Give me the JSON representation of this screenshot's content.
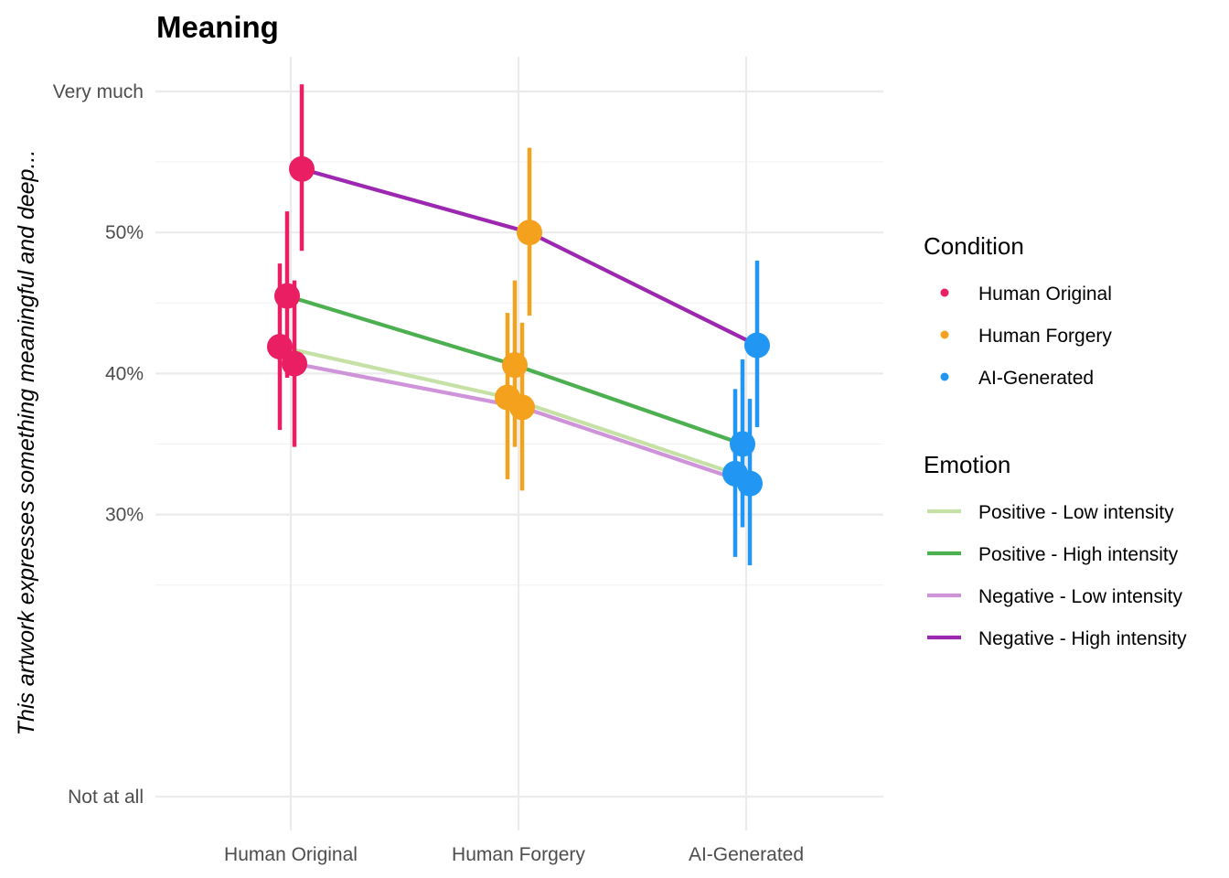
{
  "chart_data": {
    "type": "line",
    "title": "Meaning",
    "xlabel": "",
    "ylabel": "This artwork expresses something meaningful and deep...",
    "categories": [
      "Human Original",
      "Human Forgery",
      "AI-Generated"
    ],
    "y_ticks": [
      {
        "value": 0.1,
        "label": "Not at all"
      },
      {
        "value": 0.3,
        "label": "30%"
      },
      {
        "value": 0.4,
        "label": "40%"
      },
      {
        "value": 0.5,
        "label": "50%"
      },
      {
        "value": 0.6,
        "label": "Very much"
      }
    ],
    "y_minor_ticks": [
      0.25,
      0.35,
      0.45,
      0.55
    ],
    "ylim": [
      0.085,
      0.62
    ],
    "grid": true,
    "legend_position": "right",
    "condition_legend": {
      "title": "Condition",
      "items": [
        {
          "name": "Human Original",
          "color": "#E91E63"
        },
        {
          "name": "Human Forgery",
          "color": "#F4A11D"
        },
        {
          "name": "AI-Generated",
          "color": "#2196F3"
        }
      ]
    },
    "emotion_legend": {
      "title": "Emotion",
      "items": [
        {
          "name": "Positive - Low intensity",
          "color": "#C5E1A5"
        },
        {
          "name": "Positive - High intensity",
          "color": "#4CAF50"
        },
        {
          "name": "Negative - Low intensity",
          "color": "#CE93D8"
        },
        {
          "name": "Negative - High intensity",
          "color": "#9C27B0"
        }
      ]
    },
    "series": [
      {
        "name": "Positive - Low intensity",
        "color": "#C5E1A5",
        "dodge": -0.3,
        "values": [
          0.419,
          0.383,
          0.329
        ],
        "lower": [
          0.36,
          0.325,
          0.27
        ],
        "upper": [
          0.478,
          0.443,
          0.389
        ]
      },
      {
        "name": "Positive - High intensity",
        "color": "#4CAF50",
        "dodge": -0.1,
        "values": [
          0.455,
          0.406,
          0.35
        ],
        "lower": [
          0.397,
          0.348,
          0.291
        ],
        "upper": [
          0.515,
          0.466,
          0.41
        ]
      },
      {
        "name": "Negative - Low intensity",
        "color": "#CE93D8",
        "dodge": 0.1,
        "values": [
          0.407,
          0.376,
          0.322
        ],
        "lower": [
          0.348,
          0.317,
          0.264
        ],
        "upper": [
          0.466,
          0.436,
          0.382
        ]
      },
      {
        "name": "Negative - High intensity",
        "color": "#9C27B0",
        "dodge": 0.3,
        "values": [
          0.545,
          0.5,
          0.42
        ],
        "lower": [
          0.487,
          0.441,
          0.362
        ],
        "upper": [
          0.605,
          0.56,
          0.48
        ]
      }
    ]
  }
}
